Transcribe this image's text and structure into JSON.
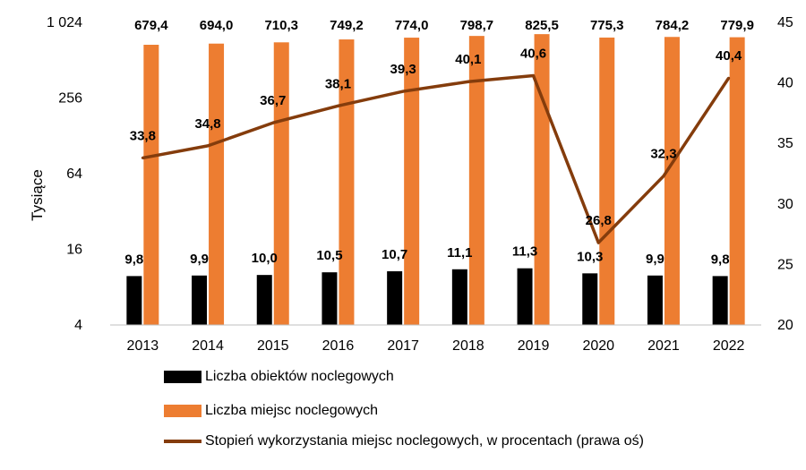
{
  "chart_data": {
    "type": "bar",
    "categories": [
      "2013",
      "2014",
      "2015",
      "2016",
      "2017",
      "2018",
      "2019",
      "2020",
      "2021",
      "2022"
    ],
    "y_left": {
      "label": "Tysiące",
      "scale": "log2",
      "ticks": [
        4,
        16,
        64,
        256,
        1024
      ],
      "tick_labels": [
        "4",
        "16",
        "64",
        "256",
        "1 024"
      ],
      "ylim": [
        4,
        1024
      ]
    },
    "y_right": {
      "ticks": [
        20,
        25,
        30,
        35,
        40,
        45
      ],
      "ylim": [
        20,
        45
      ]
    },
    "series": [
      {
        "name": "Liczba obiektów noclegowych",
        "type": "bar",
        "axis": "left",
        "color": "#000000",
        "values": [
          9.8,
          9.9,
          10.0,
          10.5,
          10.7,
          11.1,
          11.3,
          10.3,
          9.9,
          9.8
        ],
        "labels": [
          "9,8",
          "9,9",
          "10,0",
          "10,5",
          "10,7",
          "11,1",
          "11,3",
          "10,3",
          "9,9",
          "9,8"
        ]
      },
      {
        "name": "Liczba miejsc noclegowych",
        "type": "bar",
        "axis": "left",
        "color": "#ED7D31",
        "values": [
          679.4,
          694.0,
          710.3,
          749.2,
          774.0,
          798.7,
          825.5,
          775.3,
          784.2,
          779.9
        ],
        "labels": [
          "679,4",
          "694,0",
          "710,3",
          "749,2",
          "774,0",
          "798,7",
          "825,5",
          "775,3",
          "784,2",
          "779,9"
        ]
      },
      {
        "name": "Stopień wykorzystania miejsc noclegowych, w procentach (prawa oś)",
        "type": "line",
        "axis": "right",
        "color": "#843C0C",
        "values": [
          33.8,
          34.8,
          36.7,
          38.1,
          39.3,
          40.1,
          40.6,
          26.8,
          32.3,
          40.4
        ],
        "labels": [
          "33,8",
          "34,8",
          "36,7",
          "38,1",
          "39,3",
          "40,1",
          "40,6",
          "26,8",
          "32,3",
          "40,4"
        ]
      }
    ],
    "grid": false,
    "legend_position": "bottom"
  }
}
